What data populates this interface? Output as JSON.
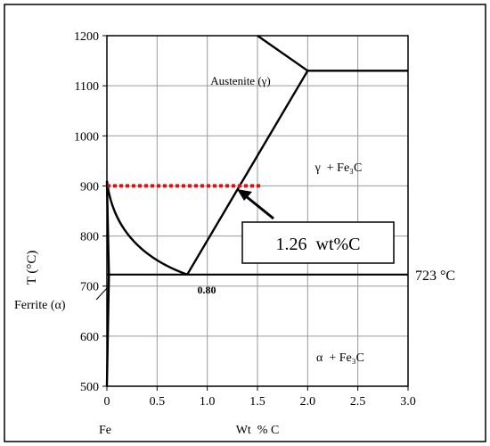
{
  "chart_data": {
    "type": "line",
    "title": "",
    "xlabel": "Wt  % C",
    "ylabel": "T (°C)",
    "xlim": [
      0,
      3.0
    ],
    "ylim": [
      500,
      1200
    ],
    "grid": true,
    "x_ticks": [
      "0",
      "0.5",
      "1.0",
      "1.5",
      "2.0",
      "2.5",
      "3.0"
    ],
    "y_ticks": [
      "500",
      "600",
      "700",
      "800",
      "900",
      "1000",
      "1100",
      "1200"
    ],
    "x_origin_label": "Fe",
    "series": [
      {
        "points": [
          [
            0.0,
            910
          ],
          [
            0.1,
            855
          ],
          [
            0.3,
            790
          ],
          [
            0.55,
            745
          ],
          [
            0.8,
            723
          ]
        ]
      },
      {
        "points": [
          [
            0.8,
            723
          ],
          [
            2.0,
            1130
          ]
        ]
      },
      {
        "points": [
          [
            2.0,
            1130
          ],
          [
            3.0,
            1130
          ]
        ]
      },
      {
        "points": [
          [
            1.5,
            1200
          ],
          [
            2.0,
            1130
          ]
        ]
      },
      {
        "points": [
          [
            0.0,
            723
          ],
          [
            3.0,
            723
          ]
        ]
      },
      {
        "points": [
          [
            0.0,
            910
          ],
          [
            0.02,
            723
          ],
          [
            0.0,
            500
          ]
        ]
      }
    ],
    "highlight_line": {
      "color": "#e01010",
      "y": 900,
      "x_range": [
        0.0,
        1.55
      ],
      "style": "dotted"
    },
    "region_labels": {
      "austenite": "Austenite (γ)",
      "gamma_fe3c": "γ  + Fe₃C",
      "alpha_fe3c": "α  + Fe₃C",
      "ferrite": "Ferrite (α)",
      "eutectoid_comp": "0.80",
      "eutectoid_temp": "723 °C"
    },
    "callout": {
      "text": "1.26  wt%C",
      "target": [
        1.26,
        900
      ]
    }
  }
}
